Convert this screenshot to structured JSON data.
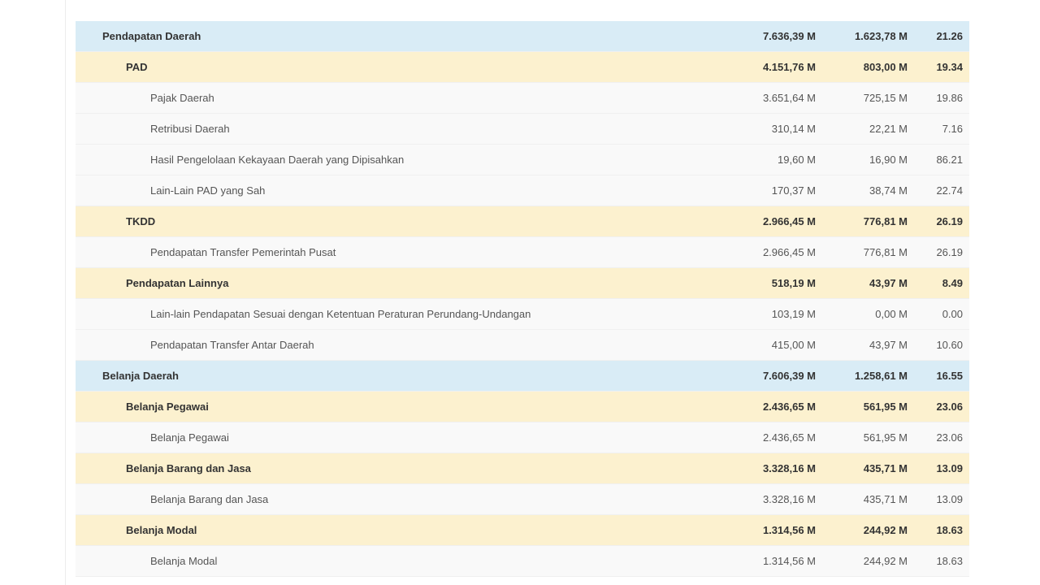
{
  "rows": [
    {
      "level": 0,
      "name": "Pendapatan Daerah",
      "budget": "7.636,39 M",
      "realized": "1.623,78 M",
      "percent": "21.26"
    },
    {
      "level": 1,
      "name": "PAD",
      "budget": "4.151,76 M",
      "realized": "803,00 M",
      "percent": "19.34"
    },
    {
      "level": 2,
      "name": "Pajak Daerah",
      "budget": "3.651,64 M",
      "realized": "725,15 M",
      "percent": "19.86"
    },
    {
      "level": 2,
      "name": "Retribusi Daerah",
      "budget": "310,14 M",
      "realized": "22,21 M",
      "percent": "7.16"
    },
    {
      "level": 2,
      "name": "Hasil Pengelolaan Kekayaan Daerah yang Dipisahkan",
      "budget": "19,60 M",
      "realized": "16,90 M",
      "percent": "86.21"
    },
    {
      "level": 2,
      "name": "Lain-Lain PAD yang Sah",
      "budget": "170,37 M",
      "realized": "38,74 M",
      "percent": "22.74"
    },
    {
      "level": 1,
      "name": "TKDD",
      "budget": "2.966,45 M",
      "realized": "776,81 M",
      "percent": "26.19"
    },
    {
      "level": 2,
      "name": "Pendapatan Transfer Pemerintah Pusat",
      "budget": "2.966,45 M",
      "realized": "776,81 M",
      "percent": "26.19"
    },
    {
      "level": 1,
      "name": "Pendapatan Lainnya",
      "budget": "518,19 M",
      "realized": "43,97 M",
      "percent": "8.49"
    },
    {
      "level": 2,
      "name": "Lain-lain Pendapatan Sesuai dengan Ketentuan Peraturan Perundang-Undangan",
      "budget": "103,19 M",
      "realized": "0,00 M",
      "percent": "0.00"
    },
    {
      "level": 2,
      "name": "Pendapatan Transfer Antar Daerah",
      "budget": "415,00 M",
      "realized": "43,97 M",
      "percent": "10.60"
    },
    {
      "level": 0,
      "name": "Belanja Daerah",
      "budget": "7.606,39 M",
      "realized": "1.258,61 M",
      "percent": "16.55"
    },
    {
      "level": 1,
      "name": "Belanja Pegawai",
      "budget": "2.436,65 M",
      "realized": "561,95 M",
      "percent": "23.06"
    },
    {
      "level": 2,
      "name": "Belanja Pegawai",
      "budget": "2.436,65 M",
      "realized": "561,95 M",
      "percent": "23.06"
    },
    {
      "level": 1,
      "name": "Belanja Barang dan Jasa",
      "budget": "3.328,16 M",
      "realized": "435,71 M",
      "percent": "13.09"
    },
    {
      "level": 2,
      "name": "Belanja Barang dan Jasa",
      "budget": "3.328,16 M",
      "realized": "435,71 M",
      "percent": "13.09"
    },
    {
      "level": 1,
      "name": "Belanja Modal",
      "budget": "1.314,56 M",
      "realized": "244,92 M",
      "percent": "18.63"
    },
    {
      "level": 2,
      "name": "Belanja Modal",
      "budget": "1.314,56 M",
      "realized": "244,92 M",
      "percent": "18.63"
    }
  ]
}
